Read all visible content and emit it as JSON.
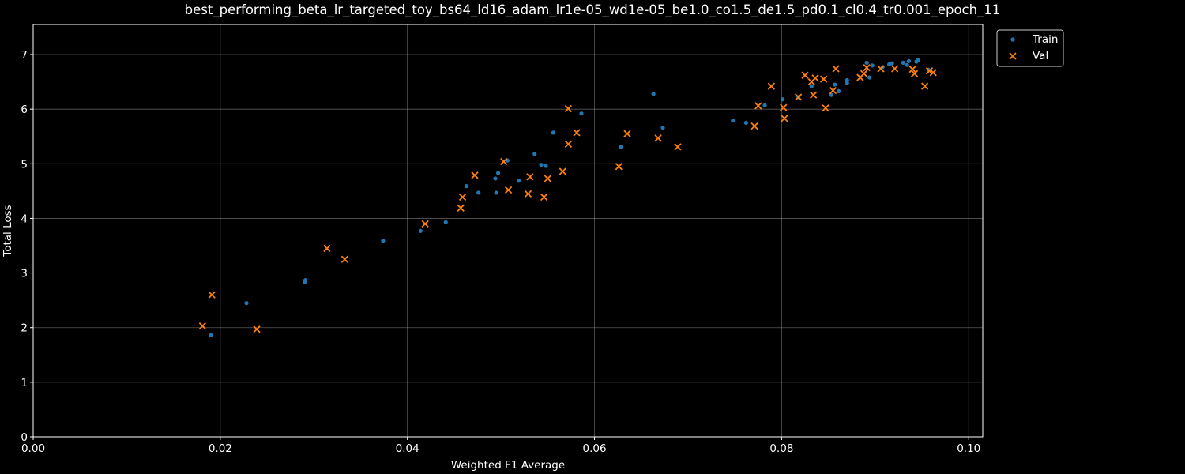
{
  "chart_data": {
    "type": "scatter",
    "title": "best_performing_beta_lr_targeted_toy_bs64_ld16_adam_lr1e-05_wd1e-05_be1.0_co1.5_de1.5_pd0.1_cl0.4_tr0.001_epoch_11",
    "xlabel": "Weighted F1 Average",
    "ylabel": "Total Loss",
    "xlim": [
      0.0,
      0.1015
    ],
    "ylim": [
      0,
      7.55
    ],
    "xticks": [
      0.0,
      0.02,
      0.04,
      0.06,
      0.08,
      0.1
    ],
    "xtick_labels": [
      "0.00",
      "0.02",
      "0.04",
      "0.06",
      "0.08",
      "0.10"
    ],
    "yticks": [
      0,
      1,
      2,
      3,
      4,
      5,
      6,
      7
    ],
    "ytick_labels": [
      "0",
      "1",
      "2",
      "3",
      "4",
      "5",
      "6",
      "7"
    ],
    "grid": true,
    "legend_position": "top-right outside",
    "series": [
      {
        "name": "Train",
        "marker": "dot",
        "color": "#1f77b4",
        "points": [
          [
            0.019,
            1.86
          ],
          [
            0.0228,
            2.45
          ],
          [
            0.029,
            2.83
          ],
          [
            0.0291,
            2.87
          ],
          [
            0.0374,
            3.59
          ],
          [
            0.0414,
            3.77
          ],
          [
            0.0441,
            3.93
          ],
          [
            0.0463,
            4.59
          ],
          [
            0.0476,
            4.47
          ],
          [
            0.0494,
            4.73
          ],
          [
            0.0495,
            4.47
          ],
          [
            0.0497,
            4.83
          ],
          [
            0.0507,
            5.06
          ],
          [
            0.0519,
            4.69
          ],
          [
            0.0536,
            5.18
          ],
          [
            0.0543,
            4.98
          ],
          [
            0.0548,
            4.96
          ],
          [
            0.0556,
            5.57
          ],
          [
            0.0586,
            5.92
          ],
          [
            0.0628,
            5.31
          ],
          [
            0.0663,
            6.28
          ],
          [
            0.0673,
            5.66
          ],
          [
            0.0748,
            5.79
          ],
          [
            0.0762,
            5.75
          ],
          [
            0.0782,
            6.07
          ],
          [
            0.0801,
            6.18
          ],
          [
            0.0818,
            6.22
          ],
          [
            0.0832,
            6.42
          ],
          [
            0.0853,
            6.26
          ],
          [
            0.0857,
            6.45
          ],
          [
            0.0861,
            6.33
          ],
          [
            0.087,
            6.48
          ],
          [
            0.087,
            6.53
          ],
          [
            0.0891,
            6.85
          ],
          [
            0.0894,
            6.58
          ],
          [
            0.0897,
            6.8
          ],
          [
            0.0908,
            6.77
          ],
          [
            0.0915,
            6.82
          ],
          [
            0.0918,
            6.84
          ],
          [
            0.093,
            6.85
          ],
          [
            0.0934,
            6.81
          ],
          [
            0.0936,
            6.88
          ],
          [
            0.0944,
            6.87
          ],
          [
            0.0946,
            6.9
          ],
          [
            0.0957,
            6.72
          ]
        ]
      },
      {
        "name": "Val",
        "marker": "x",
        "color": "#ff7f0e",
        "points": [
          [
            0.0181,
            2.03
          ],
          [
            0.0191,
            2.6
          ],
          [
            0.0239,
            1.97
          ],
          [
            0.0314,
            3.45
          ],
          [
            0.0333,
            3.25
          ],
          [
            0.0419,
            3.9
          ],
          [
            0.0457,
            4.19
          ],
          [
            0.0459,
            4.39
          ],
          [
            0.0472,
            4.79
          ],
          [
            0.0503,
            5.04
          ],
          [
            0.0508,
            4.52
          ],
          [
            0.0529,
            4.45
          ],
          [
            0.0531,
            4.76
          ],
          [
            0.0546,
            4.39
          ],
          [
            0.055,
            4.73
          ],
          [
            0.0566,
            4.86
          ],
          [
            0.0572,
            6.01
          ],
          [
            0.0572,
            5.36
          ],
          [
            0.0581,
            5.57
          ],
          [
            0.0626,
            4.95
          ],
          [
            0.0635,
            5.55
          ],
          [
            0.0668,
            5.47
          ],
          [
            0.0689,
            5.31
          ],
          [
            0.0771,
            5.69
          ],
          [
            0.0775,
            6.06
          ],
          [
            0.0789,
            6.42
          ],
          [
            0.0802,
            6.03
          ],
          [
            0.0803,
            5.83
          ],
          [
            0.0818,
            6.22
          ],
          [
            0.0825,
            6.62
          ],
          [
            0.0832,
            6.5
          ],
          [
            0.0834,
            6.26
          ],
          [
            0.0836,
            6.57
          ],
          [
            0.0845,
            6.55
          ],
          [
            0.0847,
            6.02
          ],
          [
            0.0855,
            6.34
          ],
          [
            0.0858,
            6.74
          ],
          [
            0.0884,
            6.58
          ],
          [
            0.0888,
            6.65
          ],
          [
            0.0891,
            6.76
          ],
          [
            0.0906,
            6.74
          ],
          [
            0.0921,
            6.74
          ],
          [
            0.094,
            6.73
          ],
          [
            0.0942,
            6.65
          ],
          [
            0.0953,
            6.42
          ],
          [
            0.0958,
            6.7
          ],
          [
            0.0962,
            6.67
          ]
        ]
      }
    ]
  }
}
